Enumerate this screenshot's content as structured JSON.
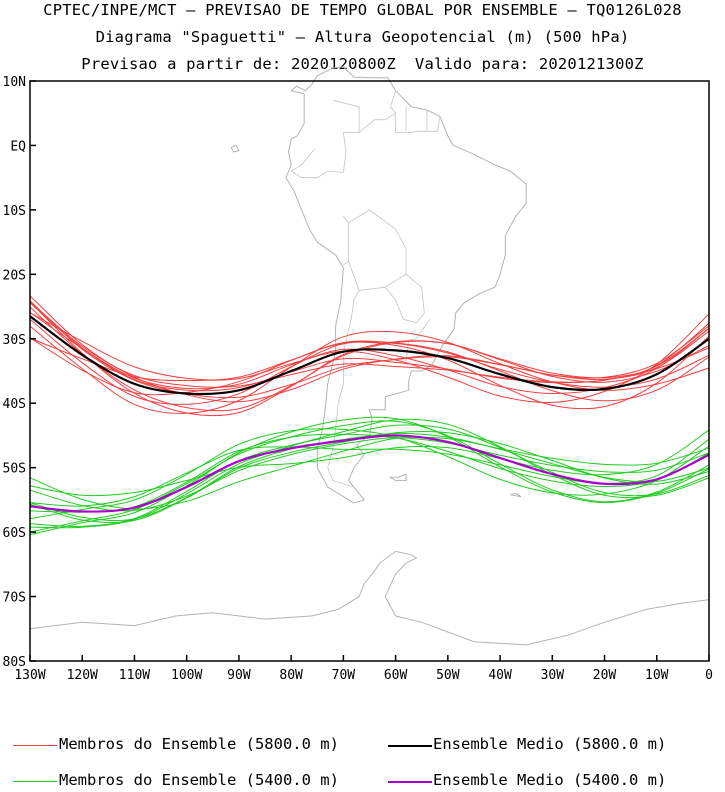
{
  "titles": {
    "line1": "CPTEC/INPE/MCT – PREVISAO DE TEMPO GLOBAL POR ENSEMBLE – TQ0126L028",
    "line2": "Diagrama \"Spaguetti\" – Altura Geopotencial (m) (500 hPa)",
    "line3": "Previsao a partir de: 2020120800Z  Valido para: 2020121300Z"
  },
  "legend": [
    {
      "label": "Membros do Ensemble (5800.0 m)",
      "color": "#f04040"
    },
    {
      "label": "Ensemble Medio (5800.0 m)",
      "color": "#000000"
    },
    {
      "label": "Membros do Ensemble (5400.0 m)",
      "color": "#22cc22"
    },
    {
      "label": "Ensemble Medio (5400.0 m)",
      "color": "#aa00cc"
    }
  ],
  "chart_data": {
    "type": "line",
    "x_ticks": [
      -130,
      -120,
      -110,
      -100,
      -90,
      -80,
      -70,
      -60,
      -50,
      -40,
      -30,
      -20,
      -10,
      0
    ],
    "x_tick_labels": [
      "130W",
      "120W",
      "110W",
      "100W",
      "90W",
      "80W",
      "70W",
      "60W",
      "50W",
      "40W",
      "30W",
      "20W",
      "10W",
      "0"
    ],
    "y_ticks": [
      10,
      0,
      -10,
      -20,
      -30,
      -40,
      -50,
      -60,
      -70,
      -80
    ],
    "y_tick_labels": [
      "10N",
      "EQ",
      "10S",
      "20S",
      "30S",
      "40S",
      "50S",
      "60S",
      "70S",
      "80S"
    ],
    "xlim": [
      -130,
      0
    ],
    "ylim": [
      -80,
      10
    ],
    "series": [
      {
        "name": "Ensemble Medio (5800.0 m)",
        "color": "#000000",
        "members_color": "#f04040",
        "member_count": 12,
        "x": [
          -130,
          -120,
          -110,
          -100,
          -90,
          -80,
          -70,
          -60,
          -50,
          -40,
          -30,
          -20,
          -10,
          0
        ],
        "y": [
          -26.5,
          -32.5,
          -37,
          -38.5,
          -38,
          -35,
          -32,
          -31.8,
          -33,
          -35.5,
          -37.5,
          -37.8,
          -35.5,
          -30
        ]
      },
      {
        "name": "Ensemble Medio (5400.0 m)",
        "color": "#aa00cc",
        "members_color": "#22cc22",
        "member_count": 12,
        "x": [
          -130,
          -120,
          -110,
          -100,
          -90,
          -80,
          -70,
          -60,
          -50,
          -40,
          -30,
          -20,
          -10,
          0
        ],
        "y": [
          -56,
          -56.8,
          -56.2,
          -53,
          -49,
          -47,
          -45.8,
          -45,
          -46,
          -48.5,
          -51,
          -52.5,
          -51.8,
          -48
        ]
      }
    ]
  }
}
